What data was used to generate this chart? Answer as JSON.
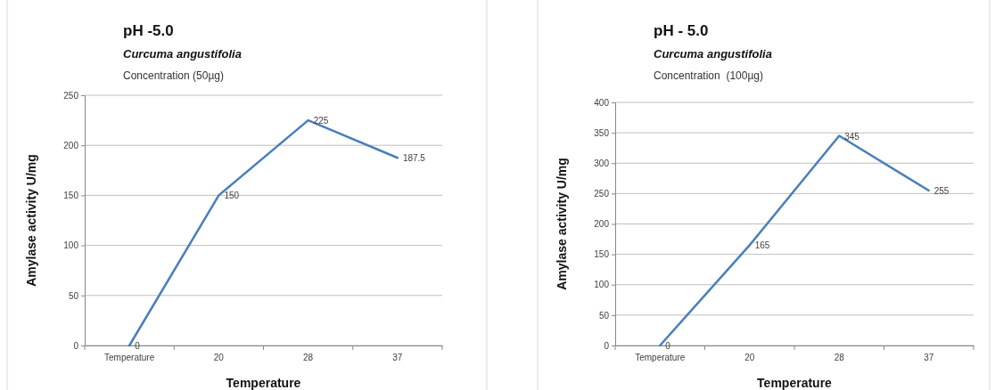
{
  "chart_data": [
    {
      "type": "line",
      "title": "pH -5.0",
      "subtitle": "Curcuma angustifolia",
      "annotations": [
        "Concentration (50µg)"
      ],
      "xlabel": "Temperature",
      "ylabel": "Amylase activity U/mg",
      "categories": [
        "Temperature",
        "20",
        "28",
        "37"
      ],
      "series": [
        {
          "color": "#4a7ebb",
          "values": [
            0,
            150,
            225,
            187.5
          ]
        }
      ],
      "ylim": [
        0,
        250
      ],
      "yticks": [
        0,
        50,
        100,
        150,
        200,
        250
      ],
      "grid": "y",
      "data_labels": true,
      "marker": "none",
      "line_style": "solid"
    },
    {
      "type": "line",
      "title": "pH - 5.0",
      "subtitle": "Curcuma angustifolia",
      "annotations": [
        "Concentration  (100µg)"
      ],
      "xlabel": "Temperature",
      "ylabel": "Amylase activity U/mg",
      "categories": [
        "Temperature",
        "20",
        "28",
        "37"
      ],
      "series": [
        {
          "color": "#4a7ebb",
          "values": [
            0,
            165,
            345,
            255
          ]
        }
      ],
      "ylim": [
        0,
        400
      ],
      "yticks": [
        0,
        50,
        100,
        150,
        200,
        250,
        300,
        350,
        400
      ],
      "grid": "y",
      "data_labels": true,
      "marker": "none",
      "line_style": "solid"
    }
  ]
}
